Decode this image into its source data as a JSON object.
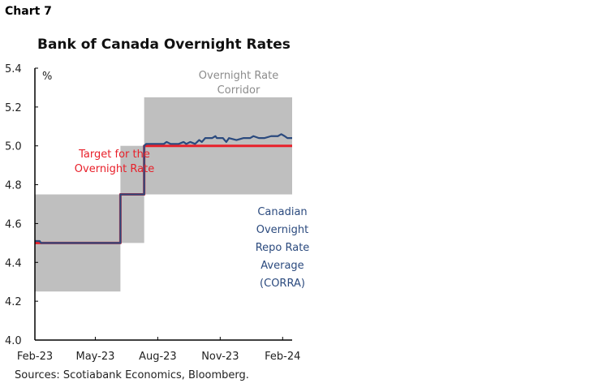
{
  "chart_label": "Chart 7",
  "source": "Sources: Scotiabank Economics, Bloomberg.",
  "chart_data": {
    "type": "line",
    "title": "Bank of Canada Overnight Rates",
    "ylabel": "%",
    "ylim": [
      4.0,
      5.4
    ],
    "yticks": [
      "4.0",
      "4.2",
      "4.4",
      "4.6",
      "4.8",
      "5.0",
      "5.2",
      "5.4"
    ],
    "xlim": [
      "2023-02-01",
      "2024-02-15"
    ],
    "xticks": [
      {
        "date": "2023-02-01",
        "label": "Feb-23"
      },
      {
        "date": "2023-05-01",
        "label": "May-23"
      },
      {
        "date": "2023-08-01",
        "label": "Aug-23"
      },
      {
        "date": "2023-11-01",
        "label": "Nov-23"
      },
      {
        "date": "2024-02-01",
        "label": "Feb-24"
      }
    ],
    "grid": false,
    "corridor": {
      "name": "Overnight Rate Corridor",
      "color": "#bfbfbf",
      "segments": [
        {
          "from": "2023-02-01",
          "to": "2023-06-07",
          "low": 4.25,
          "high": 4.75
        },
        {
          "from": "2023-06-07",
          "to": "2023-07-12",
          "low": 4.5,
          "high": 5.0
        },
        {
          "from": "2023-07-12",
          "to": "2024-02-15",
          "low": 4.75,
          "high": 5.25
        }
      ]
    },
    "series": [
      {
        "name": "Target for the Overnight Rate",
        "color": "#e8202a",
        "step": true,
        "points": [
          [
            "2023-02-01",
            4.5
          ],
          [
            "2023-06-07",
            4.75
          ],
          [
            "2023-07-12",
            5.0
          ],
          [
            "2024-02-15",
            5.0
          ]
        ]
      },
      {
        "name": "Canadian Overnight Repo Rate Average (CORRA)",
        "color": "#2b4a7e",
        "points": [
          [
            "2023-02-01",
            4.51
          ],
          [
            "2023-02-08",
            4.51
          ],
          [
            "2023-02-10",
            4.5
          ],
          [
            "2023-06-06",
            4.5
          ],
          [
            "2023-06-07",
            4.75
          ],
          [
            "2023-07-11",
            4.75
          ],
          [
            "2023-07-12",
            5.0
          ],
          [
            "2023-07-15",
            5.01
          ],
          [
            "2023-08-10",
            5.01
          ],
          [
            "2023-08-14",
            5.02
          ],
          [
            "2023-08-20",
            5.01
          ],
          [
            "2023-09-01",
            5.01
          ],
          [
            "2023-09-08",
            5.02
          ],
          [
            "2023-09-12",
            5.01
          ],
          [
            "2023-09-18",
            5.02
          ],
          [
            "2023-09-25",
            5.01
          ],
          [
            "2023-10-01",
            5.03
          ],
          [
            "2023-10-05",
            5.02
          ],
          [
            "2023-10-10",
            5.04
          ],
          [
            "2023-10-20",
            5.04
          ],
          [
            "2023-10-25",
            5.05
          ],
          [
            "2023-10-27",
            5.04
          ],
          [
            "2023-11-05",
            5.04
          ],
          [
            "2023-11-10",
            5.02
          ],
          [
            "2023-11-14",
            5.04
          ],
          [
            "2023-11-25",
            5.03
          ],
          [
            "2023-12-05",
            5.04
          ],
          [
            "2023-12-15",
            5.04
          ],
          [
            "2023-12-20",
            5.05
          ],
          [
            "2023-12-28",
            5.04
          ],
          [
            "2024-01-05",
            5.04
          ],
          [
            "2024-01-15",
            5.05
          ],
          [
            "2024-01-25",
            5.05
          ],
          [
            "2024-01-30",
            5.06
          ],
          [
            "2024-02-04",
            5.05
          ],
          [
            "2024-02-08",
            5.04
          ],
          [
            "2024-02-15",
            5.04
          ]
        ]
      }
    ],
    "annotations": {
      "corridor_lines": [
        "Overnight Rate",
        "Corridor"
      ],
      "target_lines": [
        "Target for the",
        "Overnight Rate"
      ],
      "corra_lines": [
        "Canadian",
        "Overnight",
        "Repo Rate",
        "Average",
        "(CORRA)"
      ]
    }
  }
}
